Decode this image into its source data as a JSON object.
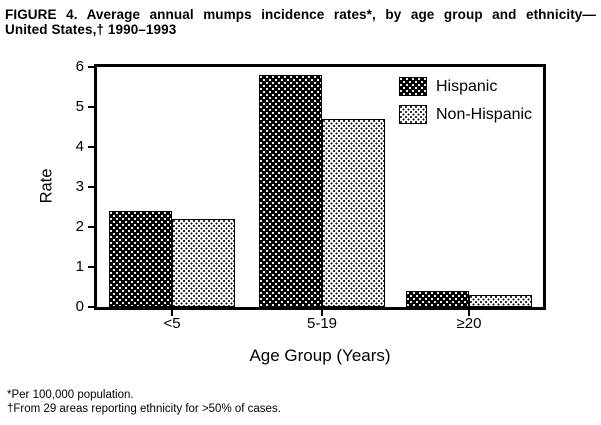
{
  "figure": {
    "title_line1": "FIGURE 4. Average annual mumps incidence rates*, by age group and ethnicity—",
    "title_line2": "United States,† 1990–1993",
    "footnotes": [
      "*Per 100,000 population.",
      "†From 29 areas reporting ethnicity for >50% of cases."
    ]
  },
  "chart_data": {
    "type": "bar",
    "title": "FIGURE 4. Average annual mumps incidence rates*, by age group and ethnicity—United States,† 1990–1993",
    "categories": [
      "<5",
      "5-19",
      "≥20"
    ],
    "series": [
      {
        "name": "Hispanic",
        "values": [
          2.4,
          5.8,
          0.4
        ],
        "pattern": "black-with-white-dots"
      },
      {
        "name": "Non-Hispanic",
        "values": [
          2.2,
          4.7,
          0.3
        ],
        "pattern": "white-with-black-dots"
      }
    ],
    "xlabel": "Age Group (Years)",
    "ylabel": "Rate",
    "ylim": [
      0,
      6
    ],
    "yticks": [
      0,
      1,
      2,
      3,
      4,
      5,
      6
    ],
    "grid": false,
    "legend_position": "top-right-inside",
    "colors": {
      "foreground": "#000000",
      "background": "#ffffff"
    }
  }
}
